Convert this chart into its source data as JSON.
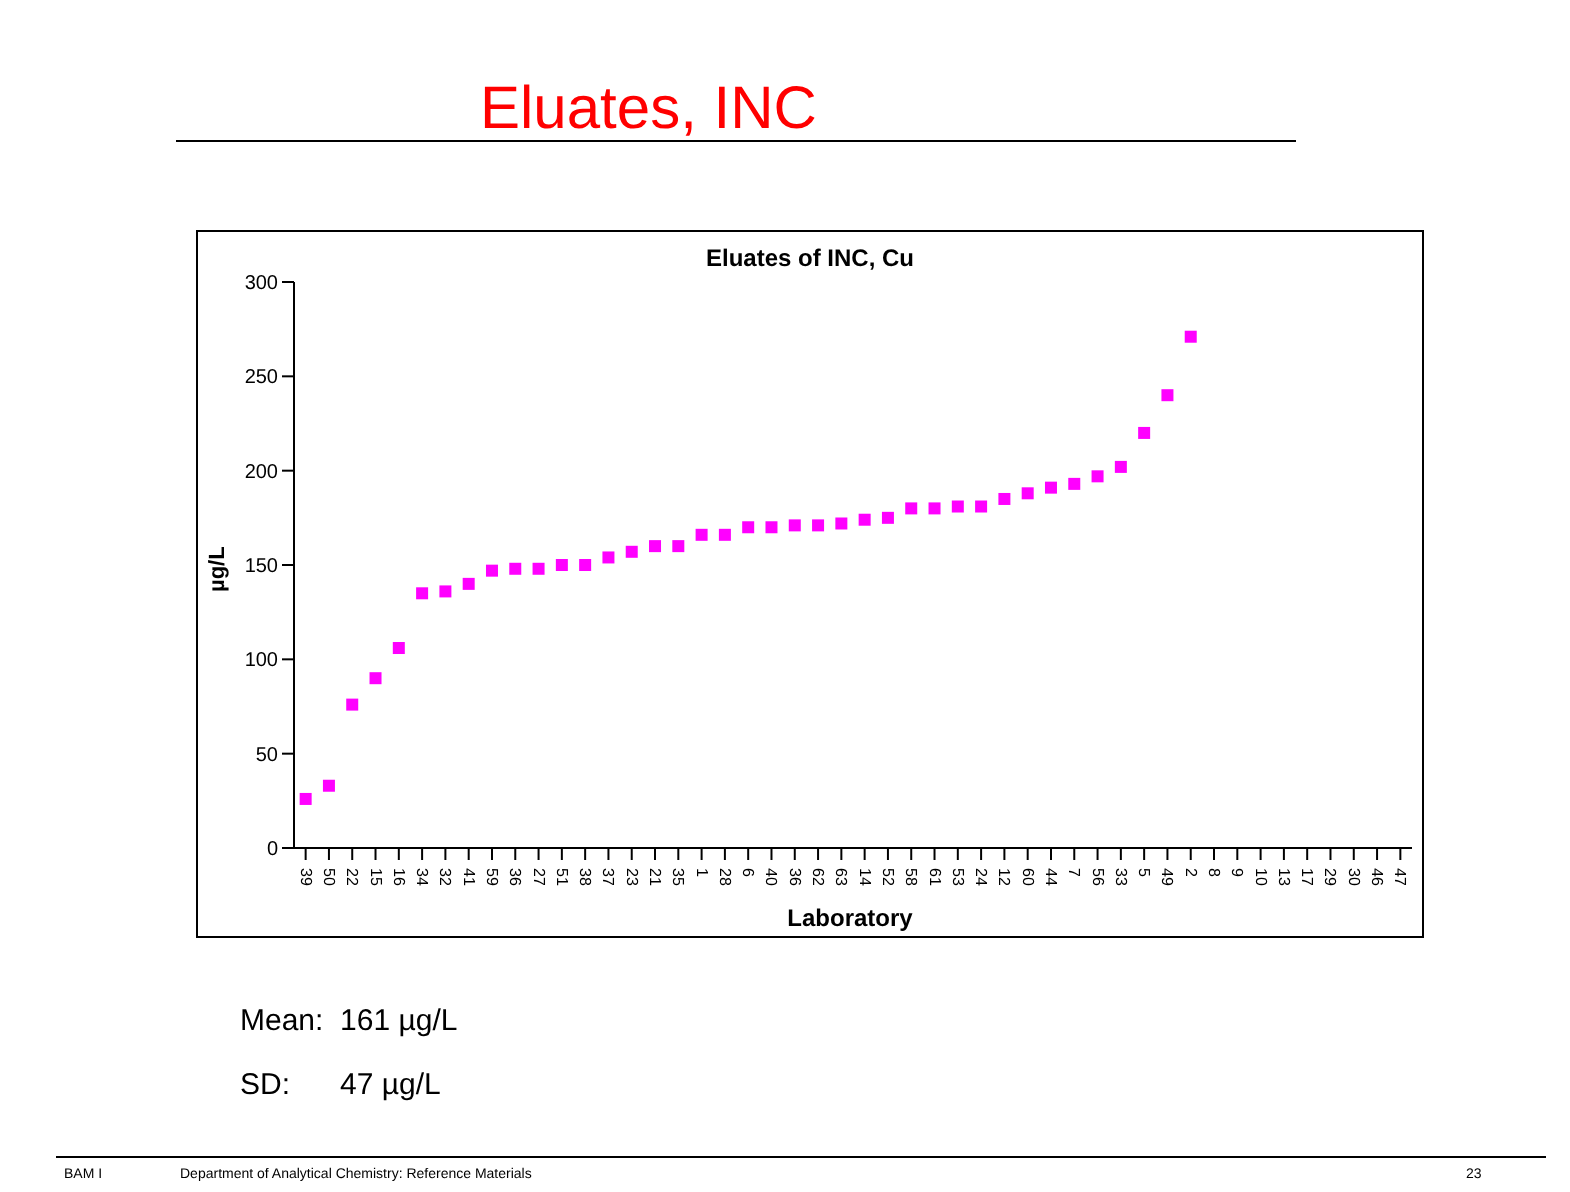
{
  "chart_data": {
    "type": "scatter",
    "title": "Eluates, INC",
    "subtitle": "Eluates of INC, Cu",
    "xlabel": "Laboratory",
    "ylabel": "µg/L",
    "categories": [
      "39",
      "50",
      "22",
      "15",
      "16",
      "34",
      "32",
      "41",
      "59",
      "36",
      "27",
      "51",
      "38",
      "37",
      "23",
      "21",
      "35",
      "1",
      "28",
      "6",
      "40",
      "36",
      "62",
      "63",
      "14",
      "52",
      "58",
      "61",
      "53",
      "24",
      "12",
      "60",
      "44",
      "7",
      "56",
      "33",
      "5",
      "49",
      "2",
      "8",
      "9",
      "10",
      "13",
      "17",
      "29",
      "30",
      "46",
      "47"
    ],
    "values": [
      26,
      33,
      76,
      90,
      106,
      135,
      136,
      140,
      147,
      148,
      148,
      150,
      150,
      154,
      157,
      160,
      160,
      166,
      166,
      170,
      170,
      171,
      171,
      172,
      174,
      175,
      180,
      180,
      181,
      181,
      185,
      188,
      191,
      193,
      197,
      202,
      220,
      240,
      271,
      null,
      null,
      null,
      null,
      null,
      null,
      null,
      null,
      null
    ],
    "color": "#ff00ff",
    "marker": "square",
    "ylim": [
      0,
      300
    ],
    "yticks": [
      0,
      50,
      100,
      150,
      200,
      250,
      300
    ],
    "grid": false,
    "legend": false,
    "annotations": [
      "Mean:  161 µg/L",
      "SD:      47 µg/L",
      "BAM I",
      "Department of Analytical Chemistry: Reference Materials",
      "23"
    ]
  }
}
